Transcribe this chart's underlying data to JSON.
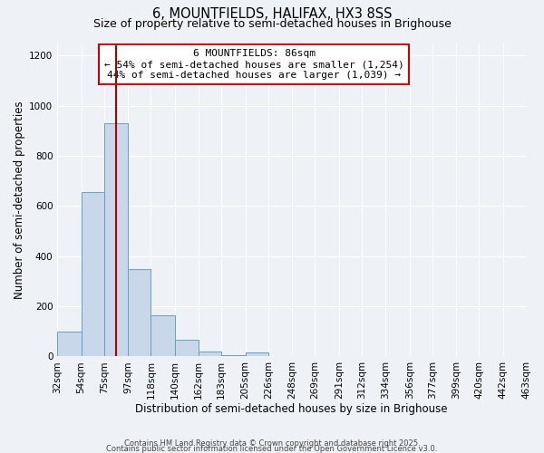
{
  "title": "6, MOUNTFIELDS, HALIFAX, HX3 8SS",
  "subtitle": "Size of property relative to semi-detached houses in Brighouse",
  "xlabel": "Distribution of semi-detached houses by size in Brighouse",
  "ylabel": "Number of semi-detached properties",
  "bar_values": [
    100,
    655,
    930,
    350,
    165,
    65,
    20,
    5,
    15,
    0,
    0,
    0,
    0,
    0,
    0,
    0,
    0,
    0,
    0,
    0
  ],
  "bin_edges": [
    32,
    54,
    75,
    97,
    118,
    140,
    162,
    183,
    205,
    226,
    248,
    269,
    291,
    312,
    334,
    356,
    377,
    399,
    420,
    442,
    463
  ],
  "bin_labels": [
    "32sqm",
    "54sqm",
    "75sqm",
    "97sqm",
    "118sqm",
    "140sqm",
    "162sqm",
    "183sqm",
    "205sqm",
    "226sqm",
    "248sqm",
    "269sqm",
    "291sqm",
    "312sqm",
    "334sqm",
    "356sqm",
    "377sqm",
    "399sqm",
    "420sqm",
    "442sqm",
    "463sqm"
  ],
  "bar_color": "#c8d8ea",
  "bar_edge_color": "#6a9fc0",
  "property_line_x": 86,
  "property_line_color": "#aa0000",
  "annotation_line1": "6 MOUNTFIELDS: 86sqm",
  "annotation_line2": "← 54% of semi-detached houses are smaller (1,254)",
  "annotation_line3": "44% of semi-detached houses are larger (1,039) →",
  "annotation_box_color": "#cc0000",
  "annotation_box_fill": "#ffffff",
  "ylim": [
    0,
    1250
  ],
  "yticks": [
    0,
    200,
    400,
    600,
    800,
    1000,
    1200
  ],
  "background_color": "#eef2f7",
  "grid_color": "#ffffff",
  "footer_line1": "Contains HM Land Registry data © Crown copyright and database right 2025.",
  "footer_line2": "Contains public sector information licensed under the Open Government Licence v3.0.",
  "title_fontsize": 10.5,
  "subtitle_fontsize": 9,
  "xlabel_fontsize": 8.5,
  "ylabel_fontsize": 8.5,
  "tick_fontsize": 7.5,
  "annotation_fontsize": 8,
  "footer_fontsize": 6
}
